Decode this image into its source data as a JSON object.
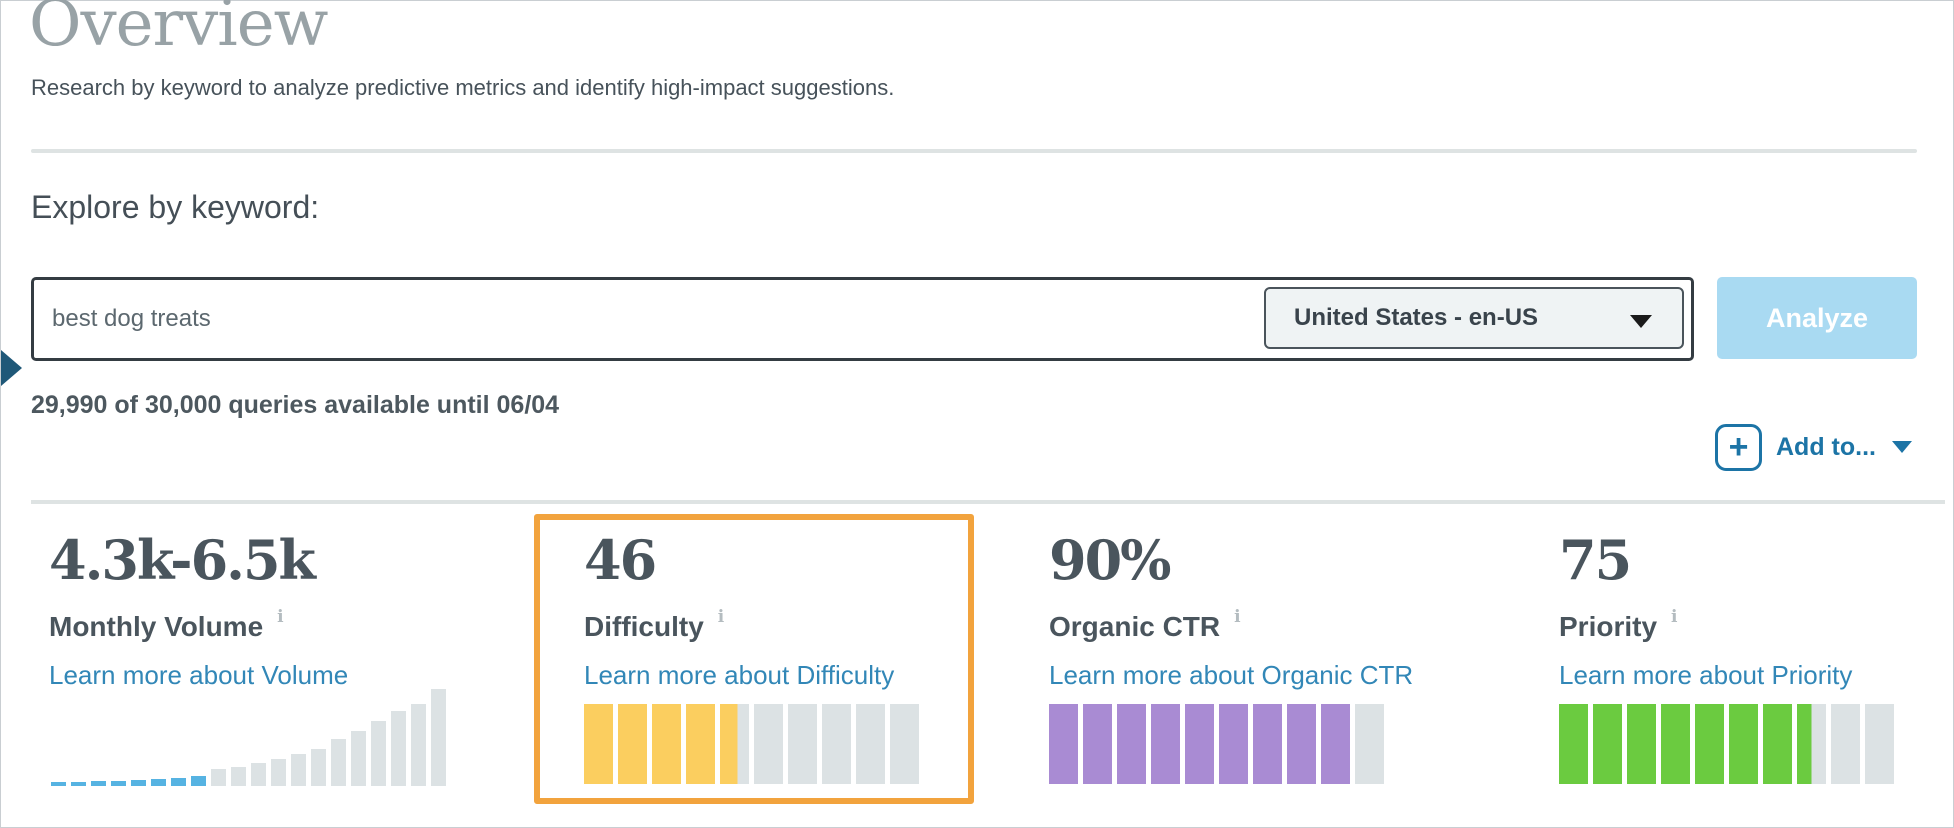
{
  "page": {
    "title": "Overview",
    "subtitle": "Research by keyword to analyze predictive metrics and identify high-impact suggestions."
  },
  "explore": {
    "heading": "Explore by keyword:",
    "keyword_input": {
      "value": "best dog treats"
    },
    "locale_dropdown": {
      "selected": "United States - en-US"
    },
    "analyze_button": "Analyze",
    "quota_text": "29,990 of 30,000 queries available until 06/04",
    "add_to": {
      "label": "Add to...",
      "plus_icon": "+"
    }
  },
  "metrics": [
    {
      "value": "4.3k-6.5k",
      "label": "Monthly Volume",
      "info": "i",
      "link": "Learn more about Volume",
      "highlighted": false
    },
    {
      "value": "46",
      "label": "Difficulty",
      "info": "i",
      "link": "Learn more about Difficulty",
      "highlighted": true
    },
    {
      "value": "90%",
      "label": "Organic CTR",
      "info": "i",
      "link": "Learn more about Organic CTR",
      "highlighted": false
    },
    {
      "value": "75",
      "label": "Priority",
      "info": "i",
      "link": "Learn more about Priority",
      "highlighted": false
    }
  ],
  "chart_data": [
    {
      "type": "bar",
      "name": "monthly-volume-distribution",
      "values": [
        4,
        4,
        5,
        5,
        6,
        7,
        8,
        10,
        17,
        19,
        23,
        27,
        32,
        37,
        47,
        55,
        65,
        75,
        82,
        97
      ],
      "highlight_first_n": 8,
      "highlight_color": "#56B3E2",
      "bar_color": "#DCE2E4",
      "title": "",
      "xlabel": "",
      "ylabel": "",
      "note": "decorative volume-range histogram, first 8 bars highlighted blue, no axes"
    },
    {
      "type": "gauge",
      "name": "difficulty",
      "value": 46,
      "max": 100,
      "segments": 10,
      "color": "#FBCE5F"
    },
    {
      "type": "gauge",
      "name": "organic-ctr",
      "value": 90,
      "max": 100,
      "segments": 10,
      "color": "#A98BD3"
    },
    {
      "type": "gauge",
      "name": "priority",
      "value": 75,
      "max": 100,
      "segments": 10,
      "color": "#6BCB40"
    }
  ],
  "colors": {
    "accent_link_blue": "#1C74A6",
    "learn_more_blue": "#3287B7",
    "analyze_button_bg": "#A9DAF2",
    "highlight_orange": "#F2A33D",
    "difficulty_yellow": "#FBCE5F",
    "ctr_purple": "#A98BD3",
    "priority_green": "#6BCB40",
    "volume_blue": "#56B3E2",
    "gauge_gray": "#DCE2E4",
    "nav_arrow_blue": "#1F5878",
    "title_gray": "#98A2A6"
  }
}
